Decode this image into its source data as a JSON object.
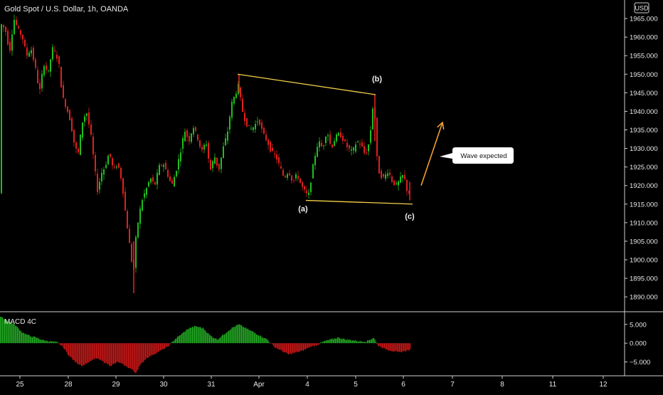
{
  "header": {
    "symbol": "Gold Spot / U.S. Dollar, 1h, OANDA",
    "currency": "USD"
  },
  "chart_data": {
    "type": "candlestick",
    "title": "Gold Spot / U.S. Dollar, 1h, OANDA",
    "ylim": [
      1886,
      1970
    ],
    "y_ticks": [
      "1965.000",
      "1960.000",
      "1955.000",
      "1950.000",
      "1945.000",
      "1940.000",
      "1935.000",
      "1930.000",
      "1925.000",
      "1920.000",
      "1915.000",
      "1910.000",
      "1905.000",
      "1900.000",
      "1895.000",
      "1890.000"
    ],
    "x_ticks": [
      "25",
      "28",
      "29",
      "30",
      "31",
      "Apr",
      "4",
      "5",
      "6",
      "7",
      "8",
      "11",
      "12"
    ],
    "path_points": [
      [
        0,
        1964
      ],
      [
        8,
        1962
      ],
      [
        14,
        1956
      ],
      [
        20,
        1965
      ],
      [
        26,
        1962
      ],
      [
        32,
        1960
      ],
      [
        38,
        1955
      ],
      [
        44,
        1957
      ],
      [
        50,
        1952
      ],
      [
        56,
        1945
      ],
      [
        62,
        1953
      ],
      [
        68,
        1950
      ],
      [
        74,
        1957
      ],
      [
        80,
        1955
      ],
      [
        84,
        1952
      ],
      [
        88,
        1944
      ],
      [
        94,
        1941
      ],
      [
        100,
        1937
      ],
      [
        104,
        1932
      ],
      [
        110,
        1928
      ],
      [
        116,
        1937
      ],
      [
        122,
        1940
      ],
      [
        128,
        1934
      ],
      [
        134,
        1924
      ],
      [
        138,
        1918
      ],
      [
        142,
        1923
      ],
      [
        148,
        1925
      ],
      [
        154,
        1929
      ],
      [
        160,
        1924
      ],
      [
        166,
        1926
      ],
      [
        172,
        1921
      ],
      [
        176,
        1914
      ],
      [
        180,
        1908
      ],
      [
        184,
        1902
      ],
      [
        188,
        1896
      ],
      [
        192,
        1907
      ],
      [
        196,
        1912
      ],
      [
        200,
        1916
      ],
      [
        206,
        1919
      ],
      [
        212,
        1922
      ],
      [
        218,
        1920
      ],
      [
        224,
        1925
      ],
      [
        230,
        1926
      ],
      [
        236,
        1923
      ],
      [
        242,
        1920
      ],
      [
        248,
        1924
      ],
      [
        254,
        1929
      ],
      [
        260,
        1935
      ],
      [
        266,
        1932
      ],
      [
        272,
        1936
      ],
      [
        278,
        1933
      ],
      [
        284,
        1929
      ],
      [
        290,
        1932
      ],
      [
        296,
        1924
      ],
      [
        302,
        1928
      ],
      [
        308,
        1924
      ],
      [
        314,
        1930
      ],
      [
        320,
        1934
      ],
      [
        326,
        1942
      ],
      [
        332,
        1945
      ],
      [
        336,
        1947
      ],
      [
        340,
        1941
      ],
      [
        346,
        1937
      ],
      [
        352,
        1935
      ],
      [
        358,
        1936
      ],
      [
        364,
        1938
      ],
      [
        370,
        1934
      ],
      [
        376,
        1932
      ],
      [
        382,
        1929
      ],
      [
        388,
        1928
      ],
      [
        394,
        1925
      ],
      [
        400,
        1922
      ],
      [
        406,
        1924
      ],
      [
        412,
        1921
      ],
      [
        418,
        1923
      ],
      [
        424,
        1920
      ],
      [
        430,
        1918
      ],
      [
        434,
        1917
      ],
      [
        438,
        1922
      ],
      [
        442,
        1927
      ],
      [
        448,
        1932
      ],
      [
        454,
        1930
      ],
      [
        460,
        1935
      ],
      [
        466,
        1930
      ],
      [
        472,
        1933
      ],
      [
        478,
        1934
      ],
      [
        484,
        1932
      ],
      [
        490,
        1930
      ],
      [
        496,
        1929
      ],
      [
        502,
        1932
      ],
      [
        508,
        1931
      ],
      [
        514,
        1928
      ],
      [
        520,
        1932
      ],
      [
        526,
        1944
      ],
      [
        530,
        1928
      ],
      [
        534,
        1923
      ],
      [
        540,
        1922
      ],
      [
        546,
        1924
      ],
      [
        552,
        1921
      ],
      [
        558,
        1920
      ],
      [
        564,
        1922
      ],
      [
        568,
        1923
      ],
      [
        572,
        1919
      ],
      [
        576,
        1918
      ]
    ],
    "patterns": {
      "upper_line": {
        "from": [
          334,
          1950
        ],
        "to": [
          528,
          1944.5
        ]
      },
      "lower_line": {
        "from": [
          430,
          1916
        ],
        "to": [
          580,
          1915
        ]
      },
      "labels": [
        {
          "text": "(b)",
          "at": [
            530,
            1948
          ]
        },
        {
          "text": "(a)",
          "at": [
            426,
            1913
          ]
        },
        {
          "text": "(c)",
          "at": [
            576,
            1911
          ]
        }
      ]
    },
    "projection_arrow": {
      "from": [
        592,
        1920
      ],
      "to": [
        622,
        1937
      ]
    },
    "annotation": {
      "text": "Wave expected"
    },
    "macd": {
      "name": "MACD 4C",
      "ylim": [
        -8.5,
        8
      ],
      "y_ticks": [
        "5.000",
        "0.000",
        "−5.000"
      ],
      "bars": [
        [
          0,
          7
        ],
        [
          10,
          6
        ],
        [
          20,
          5
        ],
        [
          30,
          3
        ],
        [
          40,
          2
        ],
        [
          50,
          1.5
        ],
        [
          60,
          0.8
        ],
        [
          70,
          0.5
        ],
        [
          80,
          0.2
        ],
        [
          88,
          -1
        ],
        [
          95,
          -3
        ],
        [
          105,
          -5
        ],
        [
          115,
          -6
        ],
        [
          125,
          -5
        ],
        [
          135,
          -4
        ],
        [
          145,
          -5
        ],
        [
          155,
          -6
        ],
        [
          165,
          -5
        ],
        [
          175,
          -6
        ],
        [
          185,
          -7
        ],
        [
          190,
          -8
        ],
        [
          196,
          -6
        ],
        [
          205,
          -4
        ],
        [
          215,
          -3
        ],
        [
          225,
          -2
        ],
        [
          235,
          -1
        ],
        [
          245,
          1
        ],
        [
          255,
          2.5
        ],
        [
          265,
          4
        ],
        [
          275,
          4.5
        ],
        [
          285,
          4
        ],
        [
          295,
          2
        ],
        [
          305,
          1
        ],
        [
          315,
          2.5
        ],
        [
          325,
          4
        ],
        [
          335,
          5
        ],
        [
          345,
          4
        ],
        [
          355,
          3
        ],
        [
          365,
          2
        ],
        [
          375,
          1
        ],
        [
          385,
          -1
        ],
        [
          395,
          -2
        ],
        [
          405,
          -3
        ],
        [
          415,
          -2.5
        ],
        [
          425,
          -2
        ],
        [
          435,
          -1
        ],
        [
          445,
          -0.5
        ],
        [
          455,
          0.5
        ],
        [
          465,
          1
        ],
        [
          475,
          1.5
        ],
        [
          485,
          1
        ],
        [
          495,
          0.8
        ],
        [
          505,
          0.5
        ],
        [
          515,
          0.5
        ],
        [
          525,
          1.5
        ],
        [
          530,
          -0.5
        ],
        [
          540,
          -1.5
        ],
        [
          550,
          -2
        ],
        [
          560,
          -2.5
        ],
        [
          570,
          -2
        ],
        [
          576,
          -1.8
        ]
      ]
    },
    "colors": {
      "up": "#1fbf1f",
      "down": "#e02020",
      "pattern_line": "#f5d24a",
      "arrow": "#f0a030",
      "macd_up": "#22a822",
      "macd_down": "#c81818"
    }
  }
}
